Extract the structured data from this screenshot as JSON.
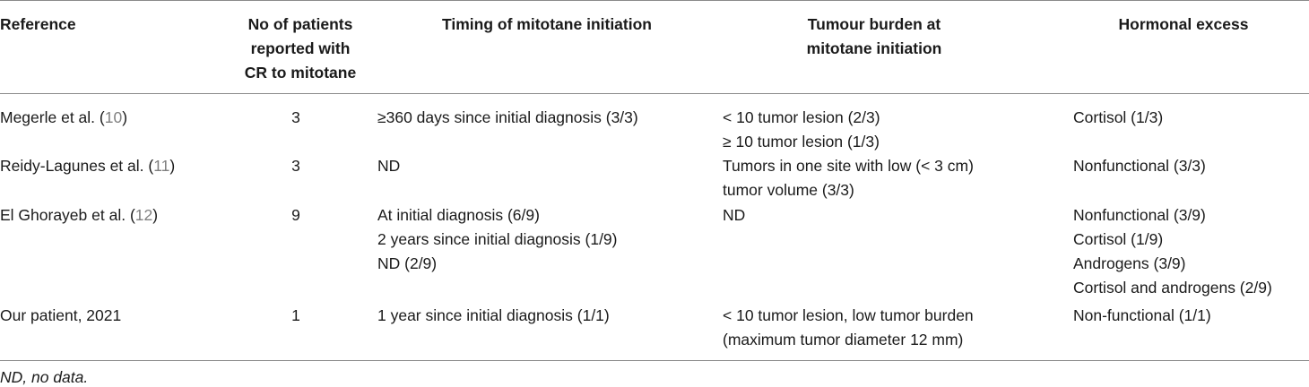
{
  "table": {
    "headers": {
      "reference": [
        "Reference"
      ],
      "patients": [
        "No of patients",
        "reported with",
        "CR to mitotane"
      ],
      "timing": [
        "Timing of mitotane initiation"
      ],
      "burden": [
        "Tumour burden at",
        "mitotane initiation"
      ],
      "hormonal": [
        "Hormonal excess"
      ]
    },
    "rows": [
      {
        "ref_text": "Megerle et al. (",
        "ref_num": "10",
        "ref_close": ")",
        "patients": "3",
        "timing": [
          "≥360 days since initial diagnosis (3/3)"
        ],
        "burden": [
          "< 10 tumor lesion   (2/3)",
          "≥ 10 tumor lesion   (1/3)"
        ],
        "hormonal": [
          "Cortisol   (1/3)"
        ]
      },
      {
        "ref_text": "Reidy-Lagunes et al. (",
        "ref_num": "11",
        "ref_close": ")",
        "patients": "3",
        "timing": [
          "ND"
        ],
        "burden": [
          "Tumors in one site with low (< 3 cm)",
          "tumor volume   (3/3)"
        ],
        "hormonal": [
          "Nonfunctional   (3/3)"
        ]
      },
      {
        "ref_text": "El Ghorayeb et al. (",
        "ref_num": "12",
        "ref_close": ")",
        "patients": "9",
        "timing": [
          "At initial diagnosis   (6/9)",
          "2 years since initial diagnosis   (1/9)",
          "ND   (2/9)"
        ],
        "burden": [
          "ND"
        ],
        "hormonal": [
          "Nonfunctional   (3/9)",
          "Cortisol   (1/9)",
          "Androgens   (3/9)",
          "Cortisol and androgens   (2/9)"
        ]
      },
      {
        "ref_text": "Our patient, 2021",
        "ref_num": "",
        "ref_close": "",
        "patients": "1",
        "timing": [
          "1 year since initial diagnosis   (1/1)"
        ],
        "burden": [
          "< 10 tumor lesion, low tumor burden",
          "(maximum tumor diameter 12 mm)"
        ],
        "hormonal": [
          "Non-functional   (1/1)"
        ]
      }
    ],
    "footnote": "ND, no data."
  }
}
